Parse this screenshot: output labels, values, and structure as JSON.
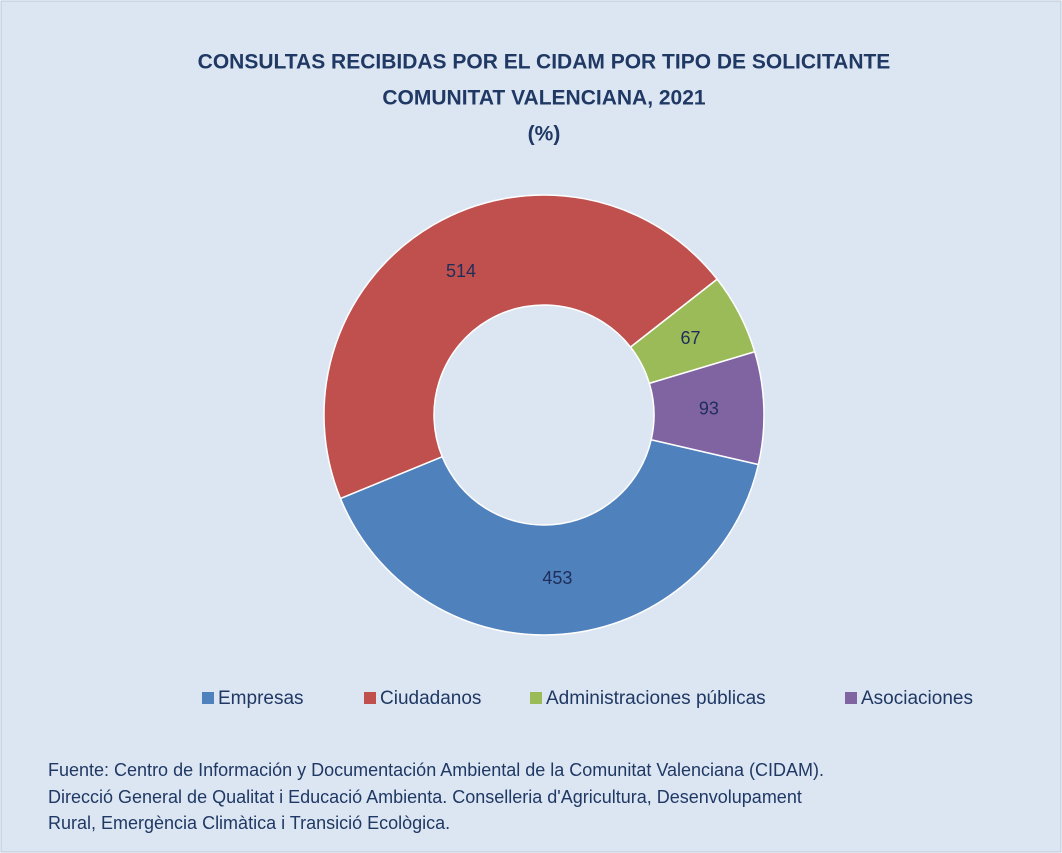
{
  "chart_data": {
    "type": "donut",
    "title": [
      "CONSULTAS RECIBIDAS POR EL CIDAM POR TIPO DE SOLICITANTE",
      "COMUNITAT VALENCIANA, 2021",
      "(%)"
    ],
    "categories": [
      "Empresas",
      "Ciudadanos",
      "Administraciones públicas",
      "Asociaciones"
    ],
    "values": [
      453,
      514,
      67,
      93
    ],
    "colors": [
      "#4f81bd",
      "#c0504d",
      "#9bbb59",
      "#8064a2"
    ],
    "first_slice_angle": 103,
    "legend": "bottom",
    "source": [
      "Fuente: Centro de Información y Documentación Ambiental de la Comunitat Valenciana (CIDAM).",
      "Direcció General de Qualitat i Educació Ambienta. Conselleria d'Agricultura, Desenvolupament",
      "Rural, Emergència Climàtica i Transició Ecològica."
    ]
  }
}
